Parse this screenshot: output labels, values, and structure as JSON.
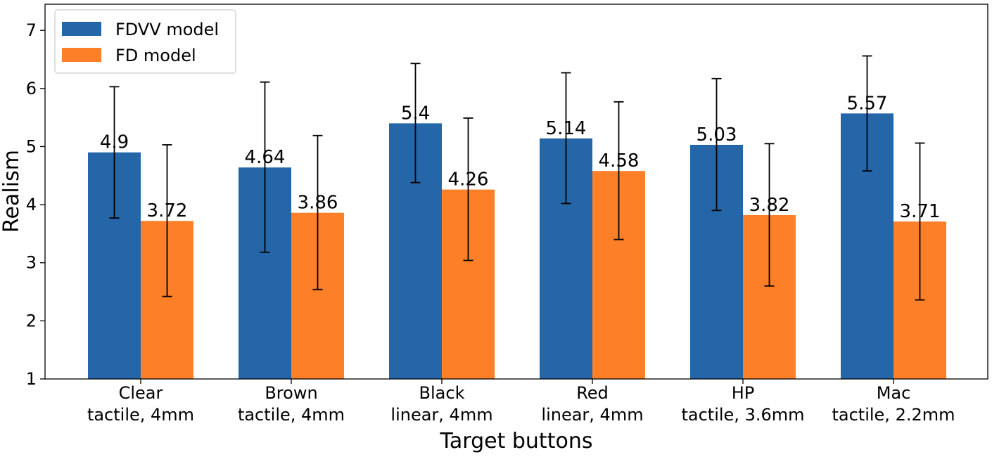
{
  "chart_data": {
    "type": "bar",
    "xlabel": "Target buttons",
    "ylabel": "Realism",
    "ylim": [
      1,
      7.45
    ],
    "yticks": [
      1,
      2,
      3,
      4,
      5,
      6,
      7
    ],
    "categories": [
      [
        "Clear",
        "tactile, 4mm"
      ],
      [
        "Brown",
        "tactile, 4mm"
      ],
      [
        "Black",
        "linear, 4mm"
      ],
      [
        "Red",
        "linear, 4mm"
      ],
      [
        "HP",
        "tactile, 3.6mm"
      ],
      [
        "Mac",
        "tactile, 2.2mm"
      ]
    ],
    "series": [
      {
        "name": "FDVV model",
        "color": "#2466a8",
        "values": [
          4.9,
          4.64,
          5.4,
          5.14,
          5.03,
          5.57
        ],
        "labels": [
          "4.9",
          "4.64",
          "5.4",
          "5.14",
          "5.03",
          "5.57"
        ],
        "err_low": [
          3.77,
          3.18,
          4.38,
          4.02,
          3.9,
          4.58
        ],
        "err_high": [
          6.03,
          6.11,
          6.43,
          6.27,
          6.17,
          6.56
        ]
      },
      {
        "name": "FD model",
        "color": "#fd7f28",
        "values": [
          3.72,
          3.86,
          4.26,
          4.58,
          3.82,
          3.71
        ],
        "labels": [
          "3.72",
          "3.86",
          "4.26",
          "4.58",
          "3.82",
          "3.71"
        ],
        "err_low": [
          2.42,
          2.54,
          3.04,
          3.4,
          2.6,
          2.36
        ],
        "err_high": [
          5.03,
          5.19,
          5.49,
          5.77,
          5.05,
          5.06
        ]
      }
    ],
    "legend": "top-left",
    "grid": false
  }
}
